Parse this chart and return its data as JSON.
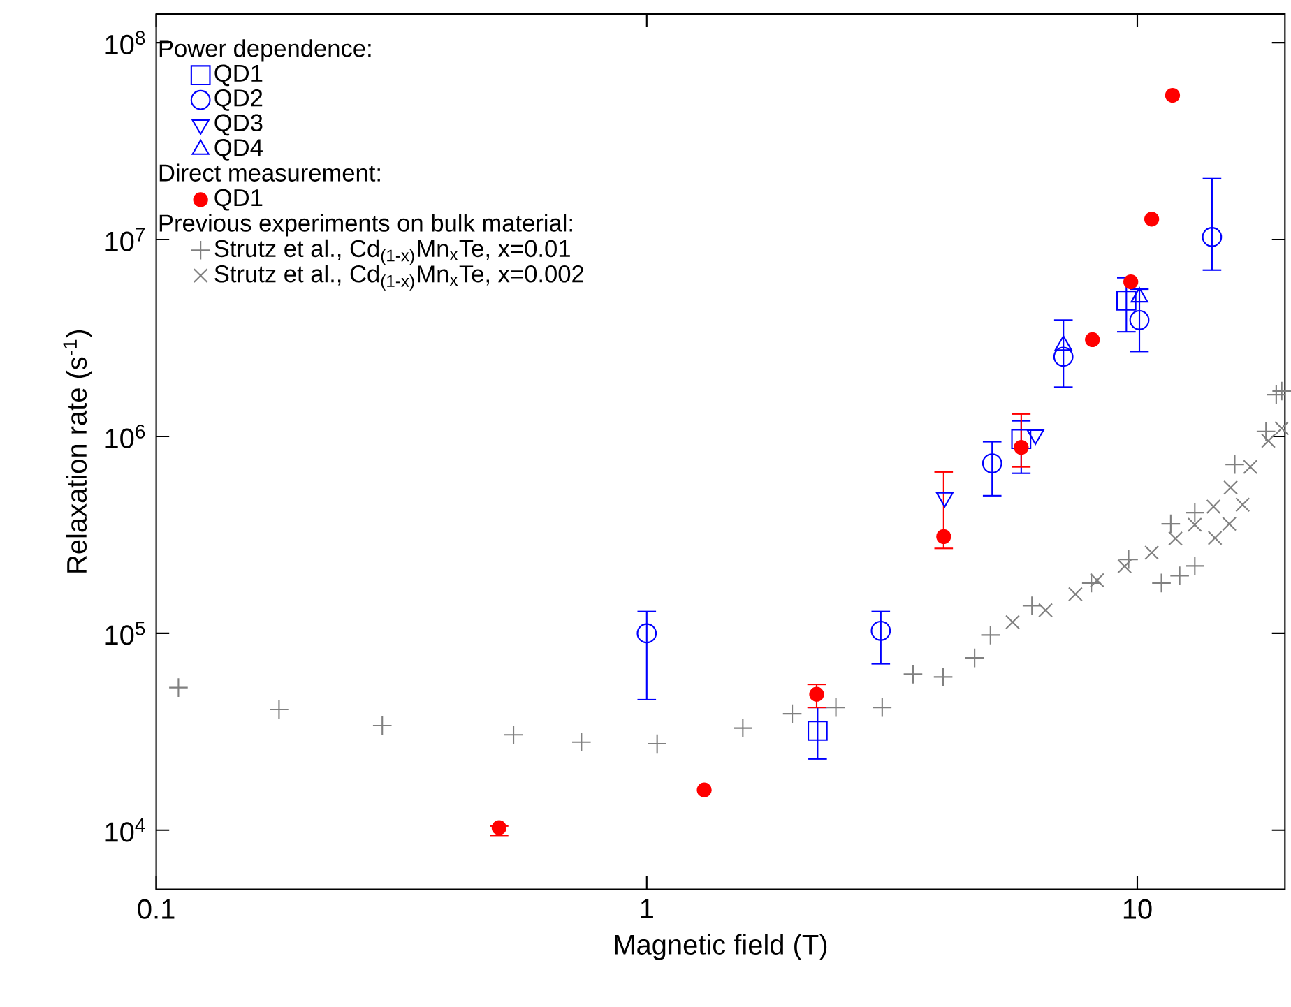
{
  "chart_data": {
    "type": "scatter",
    "xlabel": "Magnetic field (T)",
    "ylabel": "Relaxation rate (s$^{-1}$)",
    "log": "xy",
    "legend": "top left",
    "xlim": [
      0.1,
      20
    ],
    "ylim": [
      5000,
      140000000
    ],
    "xticks": [
      0.1,
      1,
      10
    ],
    "yticks": [
      {
        "value": 10000,
        "label": "10$^{4}$"
      },
      {
        "value": 100000,
        "label": "10$^{5}$"
      },
      {
        "value": 1000000,
        "label": "10$^{6}$"
      },
      {
        "value": 10000000,
        "label": "10$^{7}$"
      },
      {
        "value": 100000000,
        "label": "10$^{8}$"
      }
    ],
    "annotations": [
      "Power dependence:",
      "Direct measurement:",
      "Previous experiments on bulk material:"
    ],
    "series": [
      {
        "name": "QD1",
        "color": "#0000ff",
        "marker": "square",
        "x": [
          2.23,
          5.8,
          9.5
        ],
        "values": [
          32000,
          970000,
          4900000
        ],
        "errors": [
          [
            23000,
            42000
          ],
          [
            650000,
            1200000
          ],
          [
            3400000,
            6400000
          ]
        ]
      },
      {
        "name": "QD2",
        "color": "#0000ff",
        "marker": "circle",
        "x": [
          1.0,
          3.0,
          5.06,
          7.07,
          10.1,
          14.2
        ],
        "values": [
          100000,
          103000,
          730000,
          2540000,
          3900000,
          10300000
        ],
        "errors": [
          [
            46000,
            129000
          ],
          [
            70000,
            129000
          ],
          [
            500000,
            940000
          ],
          [
            1780000,
            3900000
          ],
          [
            2700000,
            5600000
          ],
          [
            7000000,
            20400000
          ]
        ]
      },
      {
        "name": "QD3",
        "color": "#0000ff",
        "marker": "triangle-down",
        "x": [
          4.05,
          6.2
        ],
        "values": [
          490000,
          1020000
        ],
        "errors": [
          null,
          null
        ]
      },
      {
        "name": "QD4",
        "color": "#0000ff",
        "marker": "triangle",
        "x": [
          7.07,
          10.1
        ],
        "values": [
          2900000,
          5100000
        ],
        "errors": [
          null,
          null
        ]
      },
      {
        "name": "QD1",
        "color": "#ff0000",
        "marker": "filled circle",
        "x": [
          0.5,
          1.31,
          2.22,
          4.03,
          5.8,
          8.1,
          9.7,
          10.7,
          11.8
        ],
        "values": [
          10300,
          16000,
          49000,
          310000,
          880000,
          3100000,
          6100000,
          12700000,
          54000000
        ],
        "errors": [
          [
            9400,
            10500
          ],
          null,
          [
            42000,
            55000
          ],
          [
            270000,
            660000
          ],
          [
            700000,
            1300000
          ],
          null,
          null,
          null,
          null
        ]
      },
      {
        "name": "Strutz et al., Cd$_{(1-x)}$Mn$_{x}$Te, x=0.01",
        "color": "#808080",
        "marker": "plus",
        "x": [
          0.111,
          0.178,
          0.289,
          0.535,
          0.736,
          1.05,
          1.57,
          1.98,
          2.43,
          3.02,
          3.49,
          4.02,
          4.66,
          5.02,
          6.1,
          8.06,
          9.6,
          11.2,
          11.7,
          12.2,
          13.1,
          13.1,
          15.8,
          18.3,
          19.2,
          19.7
        ],
        "values": [
          53000,
          41000,
          34000,
          30500,
          28000,
          27500,
          33000,
          39000,
          42000,
          42000,
          62000,
          60000,
          75000,
          98000,
          138000,
          180000,
          237000,
          180000,
          360000,
          196000,
          220000,
          410000,
          720000,
          1060000,
          1630000,
          1700000
        ]
      },
      {
        "name": "Strutz et al., Cd$_{(1-x)}$Mn$_{x}$Te, x=0.002",
        "color": "#808080",
        "marker": "cross",
        "x": [
          5.57,
          6.5,
          7.48,
          8.28,
          9.42,
          10.7,
          11.96,
          13.1,
          14.3,
          14.4,
          15.4,
          15.5,
          16.4,
          17.0,
          18.5,
          19.7
        ],
        "values": [
          114000,
          131000,
          158000,
          186000,
          219000,
          257000,
          303000,
          356000,
          440000,
          305000,
          360000,
          550000,
          450000,
          700000,
          950000,
          1100000
        ]
      }
    ]
  }
}
